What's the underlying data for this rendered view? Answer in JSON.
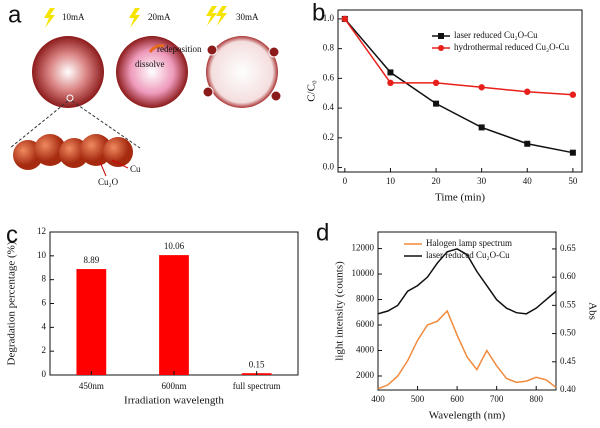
{
  "diagram": {
    "label": "a",
    "currents": [
      "10mA",
      "20mA",
      "30mA"
    ],
    "annotations": [
      "redeposition",
      "dissolve"
    ],
    "legend": [
      "Cu",
      "Cu₂O"
    ]
  },
  "chart_data": [
    {
      "type": "line",
      "label": "b",
      "x_label": "Time (min)",
      "y_label": "C/C₀",
      "x": [
        0,
        10,
        20,
        30,
        40,
        50
      ],
      "series": [
        {
          "name": "laser reduced Cu₂O-Cu",
          "color": "#111111",
          "marker": "square",
          "values": [
            1.0,
            0.64,
            0.43,
            0.27,
            0.16,
            0.1
          ]
        },
        {
          "name": "hydrothermal reduced Cu₂O-Cu",
          "color": "#e8201c",
          "marker": "circle",
          "values": [
            1.0,
            0.57,
            0.57,
            0.54,
            0.51,
            0.49
          ]
        }
      ],
      "xlim": [
        -1.5,
        52
      ],
      "xticks": [
        0,
        10,
        20,
        30,
        40,
        50
      ],
      "ylim": [
        -0.03,
        1.06
      ],
      "yticks": [
        {
          "value": 0,
          "label": "0.0"
        },
        0.2,
        0.4,
        0.6,
        0.8,
        {
          "value": 1,
          "label": "1.0"
        }
      ],
      "legend": "upper right"
    },
    {
      "type": "bar",
      "label": "c",
      "x_label": "Irradiation wavelength",
      "y_label": "Degradation percentage (%)",
      "categories": [
        "450nm",
        "600nm",
        "full spectrum"
      ],
      "values": [
        8.89,
        10.06,
        0.15
      ],
      "color": "#ff0000",
      "ylim": [
        0,
        12
      ],
      "yticks": [
        0,
        2,
        4,
        6,
        8,
        10,
        12
      ]
    },
    {
      "type": "line",
      "label": "d",
      "x_label": "Wavelength (nm)",
      "y_label": "light intensity (counts)",
      "y2_label": "Abs",
      "x": [
        400,
        425,
        450,
        475,
        500,
        525,
        550,
        575,
        600,
        625,
        650,
        675,
        700,
        725,
        750,
        775,
        800,
        825,
        850
      ],
      "series": [
        {
          "name": "Halogen lamp spectrum",
          "color": "#f28a3c",
          "values": [
            1000,
            1300,
            2000,
            3200,
            4800,
            6000,
            6300,
            7100,
            5200,
            3500,
            2500,
            4000,
            2800,
            1800,
            1500,
            1600,
            1900,
            1700,
            1100
          ]
        },
        {
          "name": "laser reduced Cu₂O-Cu",
          "color": "#111111",
          "axis": "y2",
          "values": [
            0.535,
            0.54,
            0.55,
            0.575,
            0.585,
            0.6,
            0.625,
            0.645,
            0.65,
            0.64,
            0.61,
            0.585,
            0.56,
            0.545,
            0.537,
            0.535,
            0.545,
            0.56,
            0.575
          ]
        }
      ],
      "xlim": [
        400,
        850
      ],
      "xticks": [
        400,
        500,
        600,
        700,
        800
      ],
      "ylim": [
        900,
        13300
      ],
      "yticks": [
        2000,
        4000,
        6000,
        8000,
        10000,
        12000
      ],
      "y2lim": [
        0.4,
        0.68
      ],
      "y2ticks": [
        {
          "value": 0.4,
          "label": "0.40"
        },
        0.45,
        {
          "value": 0.5,
          "label": "0.50"
        },
        0.55,
        {
          "value": 0.6,
          "label": "0.60"
        },
        0.65
      ],
      "legend": "upper left"
    }
  ]
}
